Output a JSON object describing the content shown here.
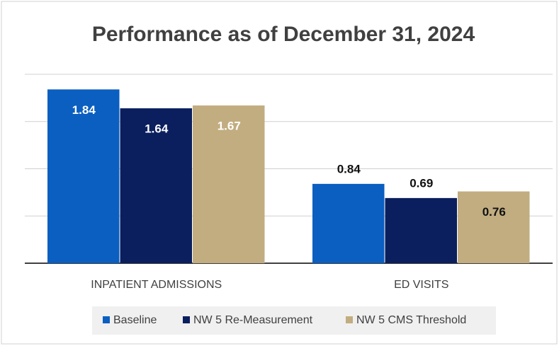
{
  "chart_data": {
    "type": "bar",
    "title": "Performance as of December 31, 2024",
    "categories": [
      "INPATIENT ADMISSIONS",
      "ED VISITS"
    ],
    "series": [
      {
        "name": "Baseline",
        "color": "#0a5fc1",
        "values": [
          1.84,
          0.84
        ]
      },
      {
        "name": "NW 5 Re-Measurement",
        "color": "#0b1f5e",
        "values": [
          1.64,
          0.69
        ]
      },
      {
        "name": "NW 5 CMS Threshold",
        "color": "#c2ad80",
        "values": [
          1.67,
          0.76
        ]
      }
    ],
    "ylim": [
      0,
      2
    ],
    "yticks": [
      0,
      0.5,
      1,
      1.5,
      2
    ],
    "grid": true,
    "legend": "bottom"
  }
}
